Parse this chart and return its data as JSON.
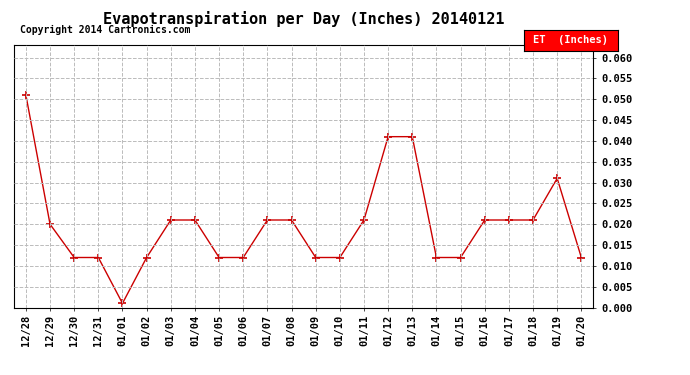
{
  "title": "Evapotranspiration per Day (Inches) 20140121",
  "copyright_text": "Copyright 2014 Cartronics.com",
  "legend_label": "ET  (Inches)",
  "legend_bg": "#ff0000",
  "legend_text_color": "#ffffff",
  "x_labels": [
    "12/28",
    "12/29",
    "12/30",
    "12/31",
    "01/01",
    "01/02",
    "01/03",
    "01/04",
    "01/05",
    "01/06",
    "01/07",
    "01/08",
    "01/09",
    "01/10",
    "01/11",
    "01/12",
    "01/13",
    "01/14",
    "01/15",
    "01/16",
    "01/17",
    "01/18",
    "01/19",
    "01/20"
  ],
  "y_values": [
    0.051,
    0.02,
    0.012,
    0.012,
    0.001,
    0.012,
    0.021,
    0.021,
    0.012,
    0.012,
    0.021,
    0.021,
    0.012,
    0.012,
    0.021,
    0.041,
    0.041,
    0.012,
    0.012,
    0.021,
    0.021,
    0.021,
    0.031,
    0.012
  ],
  "line_color": "#cc0000",
  "marker": "+",
  "marker_size": 6,
  "ylim": [
    0.0,
    0.063
  ],
  "yticks": [
    0.0,
    0.005,
    0.01,
    0.015,
    0.02,
    0.025,
    0.03,
    0.035,
    0.04,
    0.045,
    0.05,
    0.055,
    0.06
  ],
  "grid_color": "#bbbbbb",
  "grid_style": "--",
  "bg_color": "#ffffff",
  "title_fontsize": 11,
  "copyright_fontsize": 7,
  "tick_fontsize": 7.5
}
